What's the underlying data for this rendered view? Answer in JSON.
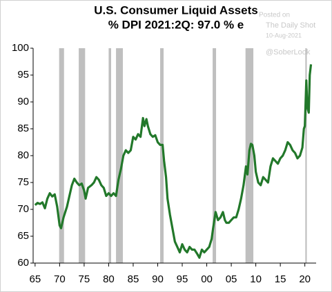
{
  "chart_data": {
    "type": "line",
    "title": "U.S. Consumer Liquid Assets",
    "subtitle": "% DPI  2021:2Q: 97.0 % e",
    "annotations": [
      "Posted on",
      "The Daily Shot",
      "10-Aug-2021",
      "@SoberLook"
    ],
    "xlim": [
      1964.6,
      2022.3
    ],
    "ylim": [
      60,
      100
    ],
    "xticks": [
      {
        "value": 1965,
        "label": "65"
      },
      {
        "value": 1970,
        "label": "70"
      },
      {
        "value": 1975,
        "label": "75"
      },
      {
        "value": 1980,
        "label": "80"
      },
      {
        "value": 1985,
        "label": "85"
      },
      {
        "value": 1990,
        "label": "90"
      },
      {
        "value": 1995,
        "label": "95"
      },
      {
        "value": 2000,
        "label": "00"
      },
      {
        "value": 2005,
        "label": "05"
      },
      {
        "value": 2010,
        "label": "10"
      },
      {
        "value": 2015,
        "label": "15"
      },
      {
        "value": 2020,
        "label": "20"
      }
    ],
    "yticks": [
      60,
      65,
      70,
      75,
      80,
      85,
      90,
      95,
      100
    ],
    "recession_color": "#bfbfbf",
    "recessions": [
      [
        1969.9,
        1970.9
      ],
      [
        1973.9,
        1975.2
      ],
      [
        1980.0,
        1980.5
      ],
      [
        1981.5,
        1982.9
      ],
      [
        1990.5,
        1991.2
      ],
      [
        2001.2,
        2001.9
      ],
      [
        2007.9,
        2009.5
      ],
      [
        2020.1,
        2020.4
      ]
    ],
    "series": [
      {
        "name": "Liquid assets % DPI",
        "color": "#22782a",
        "x": [
          1965,
          1965.5,
          1966,
          1966.5,
          1967,
          1967.5,
          1968,
          1968.5,
          1969,
          1969.5,
          1970,
          1970.3,
          1970.8,
          1971.5,
          1972,
          1972.5,
          1973,
          1973.5,
          1974,
          1974.5,
          1975,
          1975.3,
          1975.8,
          1976.5,
          1977,
          1977.5,
          1978,
          1978.5,
          1979,
          1979.5,
          1980,
          1980.5,
          1981,
          1981.5,
          1982,
          1982.5,
          1983,
          1983.5,
          1984,
          1984.5,
          1985,
          1985.5,
          1986,
          1986.5,
          1987,
          1987.3,
          1987.7,
          1988,
          1988.5,
          1989,
          1989.5,
          1990,
          1990.5,
          1991,
          1991.3,
          1991.7,
          1992,
          1992.5,
          1993,
          1993.5,
          1994,
          1994.5,
          1995,
          1995.5,
          1996,
          1996.5,
          1997,
          1997.5,
          1998,
          1998.5,
          1999,
          1999.5,
          2000,
          2000.5,
          2001,
          2001.3,
          2001.8,
          2002.3,
          2002.8,
          2003.3,
          2003.7,
          2004,
          2004.5,
          2005,
          2005.5,
          2006,
          2006.5,
          2007,
          2007.5,
          2008,
          2008.3,
          2008.7,
          2009,
          2009.3,
          2009.7,
          2010,
          2010.5,
          2011,
          2011.5,
          2012,
          2012.5,
          2013,
          2013.5,
          2014,
          2014.5,
          2015,
          2015.5,
          2016,
          2016.5,
          2017,
          2017.5,
          2018,
          2018.5,
          2019,
          2019.5,
          2019.8,
          2020,
          2020.3,
          2020.5,
          2020.8,
          2021,
          2021.25
        ],
        "values": [
          70.8,
          71.2,
          71.0,
          71.3,
          70.2,
          72.0,
          73.0,
          72.4,
          72.8,
          70.5,
          67.0,
          66.5,
          68.5,
          70.5,
          72.5,
          74.5,
          75.7,
          75.0,
          74.5,
          74.8,
          73.5,
          72.0,
          74.0,
          74.5,
          75.0,
          76.0,
          75.5,
          74.5,
          74.0,
          72.5,
          73.0,
          72.5,
          73.0,
          72.5,
          75.5,
          77.5,
          80.0,
          81.0,
          80.5,
          81.0,
          83.5,
          83.0,
          84.0,
          83.5,
          87.0,
          85.5,
          86.8,
          85.5,
          84.0,
          83.5,
          83.8,
          82.5,
          82.0,
          82.0,
          79.0,
          76.0,
          72.0,
          69.0,
          66.5,
          64.0,
          63.0,
          62.0,
          63.5,
          62.5,
          62.0,
          63.0,
          62.5,
          62.5,
          61.8,
          61.0,
          62.5,
          62.0,
          62.5,
          63.0,
          64.5,
          66.5,
          69.5,
          68.0,
          68.5,
          69.5,
          68.0,
          67.5,
          67.5,
          68.0,
          68.5,
          68.5,
          70.0,
          72.0,
          74.5,
          78.0,
          76.5,
          81.0,
          82.2,
          82.0,
          80.0,
          77.0,
          75.0,
          74.5,
          76.0,
          75.5,
          75.0,
          78.0,
          79.5,
          79.0,
          78.5,
          79.5,
          80.0,
          81.0,
          82.5,
          82.0,
          81.0,
          80.5,
          79.5,
          80.0,
          81.5,
          85.0,
          85.5,
          94.0,
          89.0,
          88.0,
          95.0,
          97.0
        ]
      }
    ]
  }
}
